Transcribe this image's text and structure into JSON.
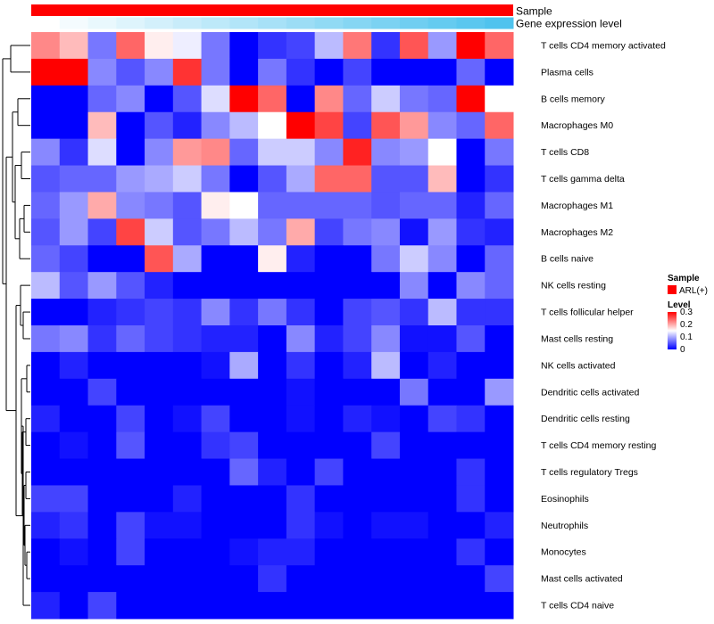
{
  "chart_data": {
    "type": "heatmap",
    "title": "",
    "annotation_tracks": [
      {
        "name": "Sample",
        "kind": "categorical",
        "value": "ARL(+)",
        "color": "#ff0000"
      },
      {
        "name": "Gene expression level",
        "kind": "gradient",
        "low_color": "#ffffff",
        "high_color": "#4fc3ee"
      }
    ],
    "columns": 17,
    "rows": [
      "T cells CD4 memory activated",
      "Plasma cells",
      "B cells memory",
      "Macrophages M0",
      "T cells CD8",
      "T cells gamma delta",
      "Macrophages M1",
      "Macrophages M2",
      "B cells naive",
      "NK cells resting",
      "T cells follicular helper",
      "Mast cells resting",
      "NK cells activated",
      "Dendritic cells activated",
      "Dendritic cells resting",
      "T cells CD4 memory resting",
      "T cells regulatory  Tregs",
      "Eosinophils",
      "Neutrophils",
      "Monocytes",
      "Mast cells activated",
      "T cells CD4 naive"
    ],
    "values": [
      [
        0.22,
        0.19,
        0.07,
        0.24,
        0.16,
        0.14,
        0.07,
        0.0,
        0.03,
        0.04,
        0.11,
        0.23,
        0.03,
        0.25,
        0.09,
        0.3,
        0.24
      ],
      [
        0.3,
        0.3,
        0.08,
        0.05,
        0.08,
        0.27,
        0.07,
        0.0,
        0.07,
        0.03,
        0.0,
        0.04,
        0.0,
        0.0,
        0.0,
        0.06,
        0.0
      ],
      [
        0.0,
        0.0,
        0.06,
        0.08,
        0.0,
        0.05,
        0.13,
        0.3,
        0.24,
        0.0,
        0.22,
        0.06,
        0.12,
        0.07,
        0.06,
        0.3,
        0.15
      ],
      [
        0.0,
        0.0,
        0.19,
        0.0,
        0.05,
        0.02,
        0.08,
        0.11,
        0.15,
        0.3,
        0.26,
        0.04,
        0.25,
        0.21,
        0.08,
        0.06,
        0.24
      ],
      [
        0.08,
        0.03,
        0.13,
        0.0,
        0.08,
        0.21,
        0.22,
        0.06,
        0.12,
        0.12,
        0.08,
        0.28,
        0.08,
        0.09,
        0.15,
        0.0,
        0.07
      ],
      [
        0.05,
        0.06,
        0.06,
        0.09,
        0.1,
        0.12,
        0.07,
        0.0,
        0.05,
        0.1,
        0.24,
        0.24,
        0.05,
        0.05,
        0.19,
        0.0,
        0.03
      ],
      [
        0.06,
        0.09,
        0.2,
        0.08,
        0.07,
        0.05,
        0.16,
        0.15,
        0.06,
        0.06,
        0.06,
        0.06,
        0.05,
        0.06,
        0.06,
        0.02,
        0.06
      ],
      [
        0.05,
        0.09,
        0.04,
        0.26,
        0.12,
        0.05,
        0.07,
        0.11,
        0.07,
        0.2,
        0.04,
        0.07,
        0.08,
        0.01,
        0.09,
        0.03,
        0.02
      ],
      [
        0.06,
        0.04,
        0.0,
        0.0,
        0.25,
        0.1,
        0.0,
        0.0,
        0.16,
        0.02,
        0.0,
        0.0,
        0.07,
        0.12,
        0.08,
        0.0,
        0.06
      ],
      [
        0.11,
        0.05,
        0.09,
        0.05,
        0.02,
        0.0,
        0.0,
        0.0,
        0.0,
        0.0,
        0.0,
        0.0,
        0.0,
        0.08,
        0.0,
        0.08,
        0.06
      ],
      [
        0.0,
        0.0,
        0.02,
        0.03,
        0.04,
        0.03,
        0.08,
        0.03,
        0.07,
        0.03,
        0.0,
        0.04,
        0.05,
        0.03,
        0.11,
        0.03,
        0.03
      ],
      [
        0.07,
        0.08,
        0.03,
        0.06,
        0.04,
        0.03,
        0.02,
        0.02,
        0.0,
        0.08,
        0.02,
        0.04,
        0.08,
        0.01,
        0.01,
        0.05,
        0.0
      ],
      [
        0.0,
        0.02,
        0.0,
        0.0,
        0.0,
        0.0,
        0.01,
        0.1,
        0.0,
        0.03,
        0.0,
        0.02,
        0.11,
        0.0,
        0.02,
        0.0,
        0.0
      ],
      [
        0.0,
        0.0,
        0.04,
        0.0,
        0.0,
        0.0,
        0.0,
        0.0,
        0.0,
        0.01,
        0.0,
        0.0,
        0.0,
        0.07,
        0.0,
        0.0,
        0.09
      ],
      [
        0.02,
        0.0,
        0.0,
        0.04,
        0.0,
        0.01,
        0.04,
        0.0,
        0.0,
        0.01,
        0.0,
        0.02,
        0.01,
        0.0,
        0.04,
        0.03,
        0.0
      ],
      [
        0.0,
        0.01,
        0.0,
        0.05,
        0.0,
        0.0,
        0.03,
        0.04,
        0.0,
        0.0,
        0.0,
        0.0,
        0.04,
        0.0,
        0.0,
        0.0,
        0.0
      ],
      [
        0.0,
        0.0,
        0.0,
        0.0,
        0.0,
        0.0,
        0.0,
        0.06,
        0.02,
        0.0,
        0.04,
        0.0,
        0.0,
        0.0,
        0.0,
        0.03,
        0.0
      ],
      [
        0.04,
        0.04,
        0.0,
        0.0,
        0.0,
        0.02,
        0.0,
        0.0,
        0.0,
        0.03,
        0.0,
        0.0,
        0.0,
        0.0,
        0.0,
        0.03,
        0.0
      ],
      [
        0.02,
        0.03,
        0.0,
        0.04,
        0.01,
        0.01,
        0.0,
        0.0,
        0.0,
        0.03,
        0.01,
        0.0,
        0.01,
        0.01,
        0.0,
        0.0,
        0.02
      ],
      [
        0.0,
        0.01,
        0.0,
        0.04,
        0.0,
        0.0,
        0.0,
        0.01,
        0.02,
        0.02,
        0.0,
        0.0,
        0.0,
        0.0,
        0.0,
        0.03,
        0.0
      ],
      [
        0.0,
        0.0,
        0.0,
        0.0,
        0.0,
        0.0,
        0.0,
        0.0,
        0.03,
        0.0,
        0.0,
        0.0,
        0.0,
        0.0,
        0.0,
        0.0,
        0.04
      ],
      [
        0.02,
        0.0,
        0.04,
        0.0,
        0.0,
        0.0,
        0.0,
        0.0,
        0.0,
        0.0,
        0.0,
        0.0,
        0.0,
        0.0,
        0.0,
        0.0,
        0.0
      ]
    ],
    "color_scale": {
      "min": 0,
      "max": 0.3,
      "low": "#0000ff",
      "mid": "#ffffff",
      "high": "#ff0000",
      "mid_value": 0.15
    },
    "row_dendrogram": true,
    "legend": {
      "position": "right",
      "sample_title": "Sample",
      "sample_label": "ARL(+)",
      "level_title": "Level",
      "level_ticks": [
        "0.3",
        "0.2",
        "0.1",
        "0"
      ]
    }
  }
}
